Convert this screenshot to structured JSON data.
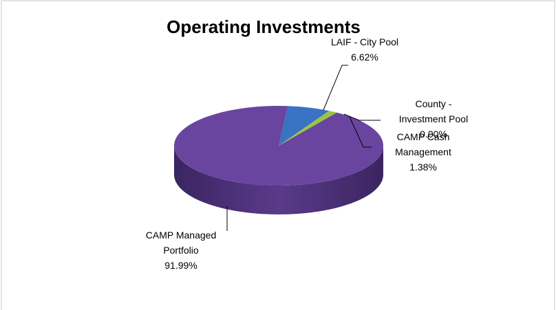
{
  "chart_data": {
    "type": "pie",
    "title": "Operating Investments",
    "categories": [
      "LAIF - City Pool",
      "County - Investment Pool",
      "CAMP Cash Management",
      "CAMP Managed Portfolio"
    ],
    "values": [
      6.62,
      0.0,
      1.38,
      91.99
    ],
    "value_labels": [
      "6.62%",
      "0.00%",
      "1.38%",
      "91.99%"
    ],
    "colors": [
      "#3a72c4",
      "#c0504d",
      "#9bc540",
      "#6a45a0"
    ]
  }
}
